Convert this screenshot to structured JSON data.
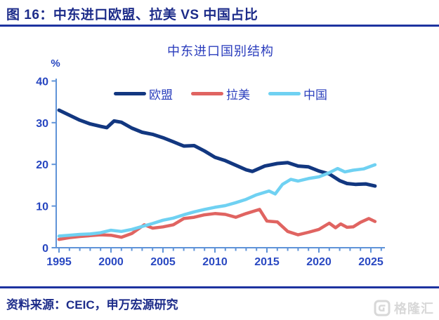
{
  "header": {
    "title": "图 16：中东进口欧盟、拉美 VS 中国占比"
  },
  "footer": {
    "source": "资料来源：CEIC，申万宏源研究",
    "watermark": "格隆汇"
  },
  "colors": {
    "header_navy": "#1d2c8a",
    "rule_navy": "#1d33a0",
    "royal_blue_text": "#2a3cbd",
    "axis_blue": "#5f93d8",
    "eu_line": "#123780",
    "latam_line": "#e06461",
    "china_line": "#6fd1f2",
    "watermark_gray": "#d8d8d8"
  },
  "chart_data": {
    "type": "line",
    "title": "中东进口国别结构",
    "xlabel": "",
    "ylabel": "%",
    "ylim": [
      0,
      40
    ],
    "yticks": [
      0,
      10,
      20,
      30,
      40
    ],
    "xticks": [
      1995,
      2000,
      2005,
      2010,
      2015,
      2020,
      2025
    ],
    "x_minor_tick_every_year": true,
    "x_range_years": [
      1995,
      2026
    ],
    "grid": false,
    "legend_position": "top-center-inside",
    "series": [
      {
        "name": "欧盟",
        "color": "#123780",
        "points": [
          [
            1995,
            33.0
          ],
          [
            1996,
            31.8
          ],
          [
            1997,
            30.6
          ],
          [
            1998,
            29.7
          ],
          [
            1999,
            29.1
          ],
          [
            1999.6,
            28.8
          ],
          [
            2000.3,
            30.4
          ],
          [
            2001,
            30.1
          ],
          [
            2002,
            28.7
          ],
          [
            2003,
            27.7
          ],
          [
            2004,
            27.2
          ],
          [
            2005,
            26.4
          ],
          [
            2006,
            25.4
          ],
          [
            2007,
            24.4
          ],
          [
            2008,
            24.5
          ],
          [
            2009,
            23.2
          ],
          [
            2010,
            21.7
          ],
          [
            2011,
            20.9
          ],
          [
            2012,
            19.8
          ],
          [
            2013,
            18.7
          ],
          [
            2013.6,
            18.3
          ],
          [
            2014.8,
            19.6
          ],
          [
            2016,
            20.2
          ],
          [
            2017,
            20.4
          ],
          [
            2018,
            19.6
          ],
          [
            2019,
            19.4
          ],
          [
            2020,
            18.4
          ],
          [
            2021,
            17.7
          ],
          [
            2022,
            16.1
          ],
          [
            2022.7,
            15.4
          ],
          [
            2023.5,
            15.2
          ],
          [
            2024.5,
            15.3
          ],
          [
            2025.4,
            14.8
          ]
        ]
      },
      {
        "name": "拉美",
        "color": "#e06461",
        "points": [
          [
            1995,
            2.0
          ],
          [
            1996,
            2.4
          ],
          [
            1997,
            2.7
          ],
          [
            1998,
            2.9
          ],
          [
            1999,
            3.1
          ],
          [
            2000,
            3.0
          ],
          [
            2001,
            2.5
          ],
          [
            2002,
            3.4
          ],
          [
            2003.2,
            5.5
          ],
          [
            2004,
            4.7
          ],
          [
            2005,
            5.0
          ],
          [
            2006,
            5.5
          ],
          [
            2007,
            7.0
          ],
          [
            2008,
            7.3
          ],
          [
            2009,
            7.9
          ],
          [
            2010,
            8.2
          ],
          [
            2011,
            8.0
          ],
          [
            2012,
            7.3
          ],
          [
            2013,
            8.2
          ],
          [
            2014.3,
            9.2
          ],
          [
            2015,
            6.4
          ],
          [
            2016,
            6.2
          ],
          [
            2017,
            3.9
          ],
          [
            2018,
            3.1
          ],
          [
            2019,
            3.7
          ],
          [
            2020,
            4.4
          ],
          [
            2021,
            5.9
          ],
          [
            2021.6,
            4.8
          ],
          [
            2022.1,
            5.7
          ],
          [
            2022.7,
            4.9
          ],
          [
            2023.3,
            5.0
          ],
          [
            2024,
            6.1
          ],
          [
            2024.8,
            7.0
          ],
          [
            2025.4,
            6.3
          ]
        ]
      },
      {
        "name": "中国",
        "color": "#6fd1f2",
        "points": [
          [
            1995,
            2.8
          ],
          [
            1996,
            3.0
          ],
          [
            1997,
            3.2
          ],
          [
            1998,
            3.3
          ],
          [
            1999,
            3.6
          ],
          [
            2000,
            4.2
          ],
          [
            2001,
            3.9
          ],
          [
            2002,
            4.4
          ],
          [
            2003,
            5.1
          ],
          [
            2004,
            5.8
          ],
          [
            2005,
            6.6
          ],
          [
            2006,
            7.1
          ],
          [
            2007,
            7.9
          ],
          [
            2008,
            8.6
          ],
          [
            2009,
            9.2
          ],
          [
            2010,
            9.7
          ],
          [
            2011,
            10.1
          ],
          [
            2012,
            10.8
          ],
          [
            2013,
            11.6
          ],
          [
            2014,
            12.7
          ],
          [
            2015.2,
            13.6
          ],
          [
            2015.8,
            12.9
          ],
          [
            2016.5,
            15.2
          ],
          [
            2017.3,
            16.4
          ],
          [
            2018,
            16.0
          ],
          [
            2019,
            16.6
          ],
          [
            2020,
            17.0
          ],
          [
            2021,
            18.0
          ],
          [
            2021.8,
            19.0
          ],
          [
            2022.5,
            18.2
          ],
          [
            2023.3,
            18.6
          ],
          [
            2024.3,
            18.9
          ],
          [
            2025.4,
            19.9
          ]
        ]
      }
    ]
  }
}
